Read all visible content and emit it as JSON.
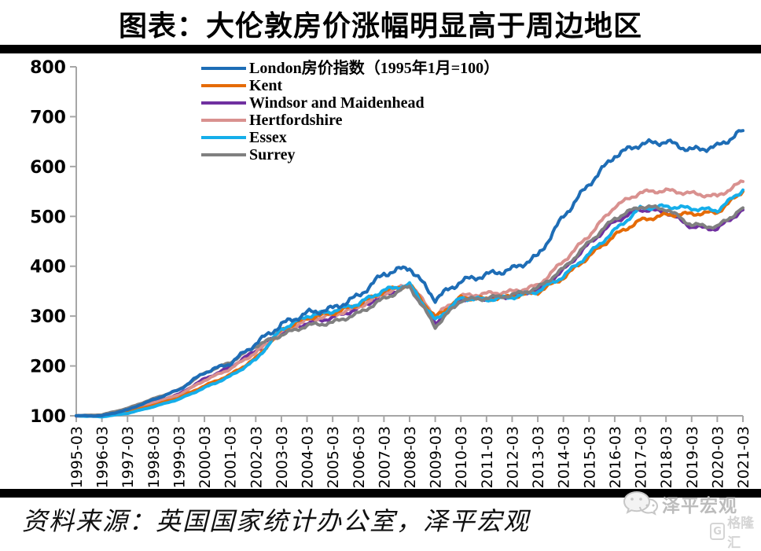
{
  "page": {
    "title": "图表：大伦敦房价涨幅明显高于周边地区"
  },
  "source": {
    "text": "资料来源：英国国家统计办公室，泽平宏观"
  },
  "watermarks": {
    "wechat_account_name": "泽平宏观",
    "site_name": "格隆汇",
    "site_logo_letter": "G"
  },
  "chart_data": {
    "type": "line",
    "title": "",
    "xlabel": "",
    "ylabel": "",
    "ylim": [
      100,
      800
    ],
    "y_ticks": [
      100,
      200,
      300,
      400,
      500,
      600,
      700,
      800
    ],
    "grid": false,
    "legend_position": "top-center",
    "axis_color": "#a6a6a6",
    "x_tick_labels": [
      "1995-03",
      "1996-03",
      "1997-03",
      "1998-03",
      "1999-03",
      "2000-03",
      "2001-03",
      "2002-03",
      "2003-03",
      "2004-03",
      "2005-03",
      "2006-03",
      "2007-03",
      "2008-03",
      "2009-03",
      "2010-03",
      "2011-03",
      "2012-03",
      "2013-03",
      "2014-03",
      "2015-03",
      "2016-03",
      "2017-03",
      "2018-03",
      "2019-03",
      "2020-03",
      "2021-03"
    ],
    "series": [
      {
        "name": "London房价指数（1995年1月=100）",
        "color": "#1e6db6",
        "values": [
          100,
          100,
          112,
          132,
          152,
          187,
          205,
          245,
          283,
          306,
          315,
          340,
          385,
          398,
          334,
          370,
          383,
          394,
          420,
          500,
          565,
          622,
          645,
          650,
          633,
          640,
          672
        ]
      },
      {
        "name": "Kent",
        "color": "#e56b07",
        "values": [
          100,
          99,
          107,
          121,
          136,
          160,
          182,
          215,
          272,
          296,
          306,
          323,
          350,
          363,
          297,
          337,
          334,
          339,
          348,
          377,
          420,
          462,
          492,
          503,
          505,
          508,
          550
        ]
      },
      {
        "name": "Windsor and Maidenhead",
        "color": "#7030a0",
        "values": [
          100,
          100,
          110,
          127,
          143,
          174,
          197,
          231,
          266,
          286,
          297,
          315,
          343,
          360,
          286,
          334,
          336,
          340,
          352,
          392,
          445,
          490,
          514,
          509,
          479,
          475,
          513
        ]
      },
      {
        "name": "Hertfordshire",
        "color": "#d9918f",
        "values": [
          100,
          100,
          110,
          126,
          142,
          171,
          194,
          227,
          268,
          292,
          302,
          318,
          345,
          365,
          300,
          340,
          345,
          349,
          361,
          410,
          462,
          520,
          548,
          552,
          546,
          540,
          570
        ]
      },
      {
        "name": "Essex",
        "color": "#15aeea",
        "values": [
          100,
          98,
          105,
          118,
          133,
          156,
          179,
          212,
          274,
          300,
          310,
          325,
          352,
          363,
          291,
          336,
          333,
          338,
          350,
          380,
          425,
          472,
          516,
          520,
          516,
          512,
          553
        ]
      },
      {
        "name": "Surrey",
        "color": "#808080",
        "values": [
          100,
          102,
          115,
          134,
          152,
          186,
          207,
          240,
          262,
          281,
          287,
          305,
          335,
          360,
          279,
          332,
          336,
          342,
          356,
          395,
          448,
          496,
          520,
          515,
          483,
          479,
          517
        ]
      }
    ]
  }
}
